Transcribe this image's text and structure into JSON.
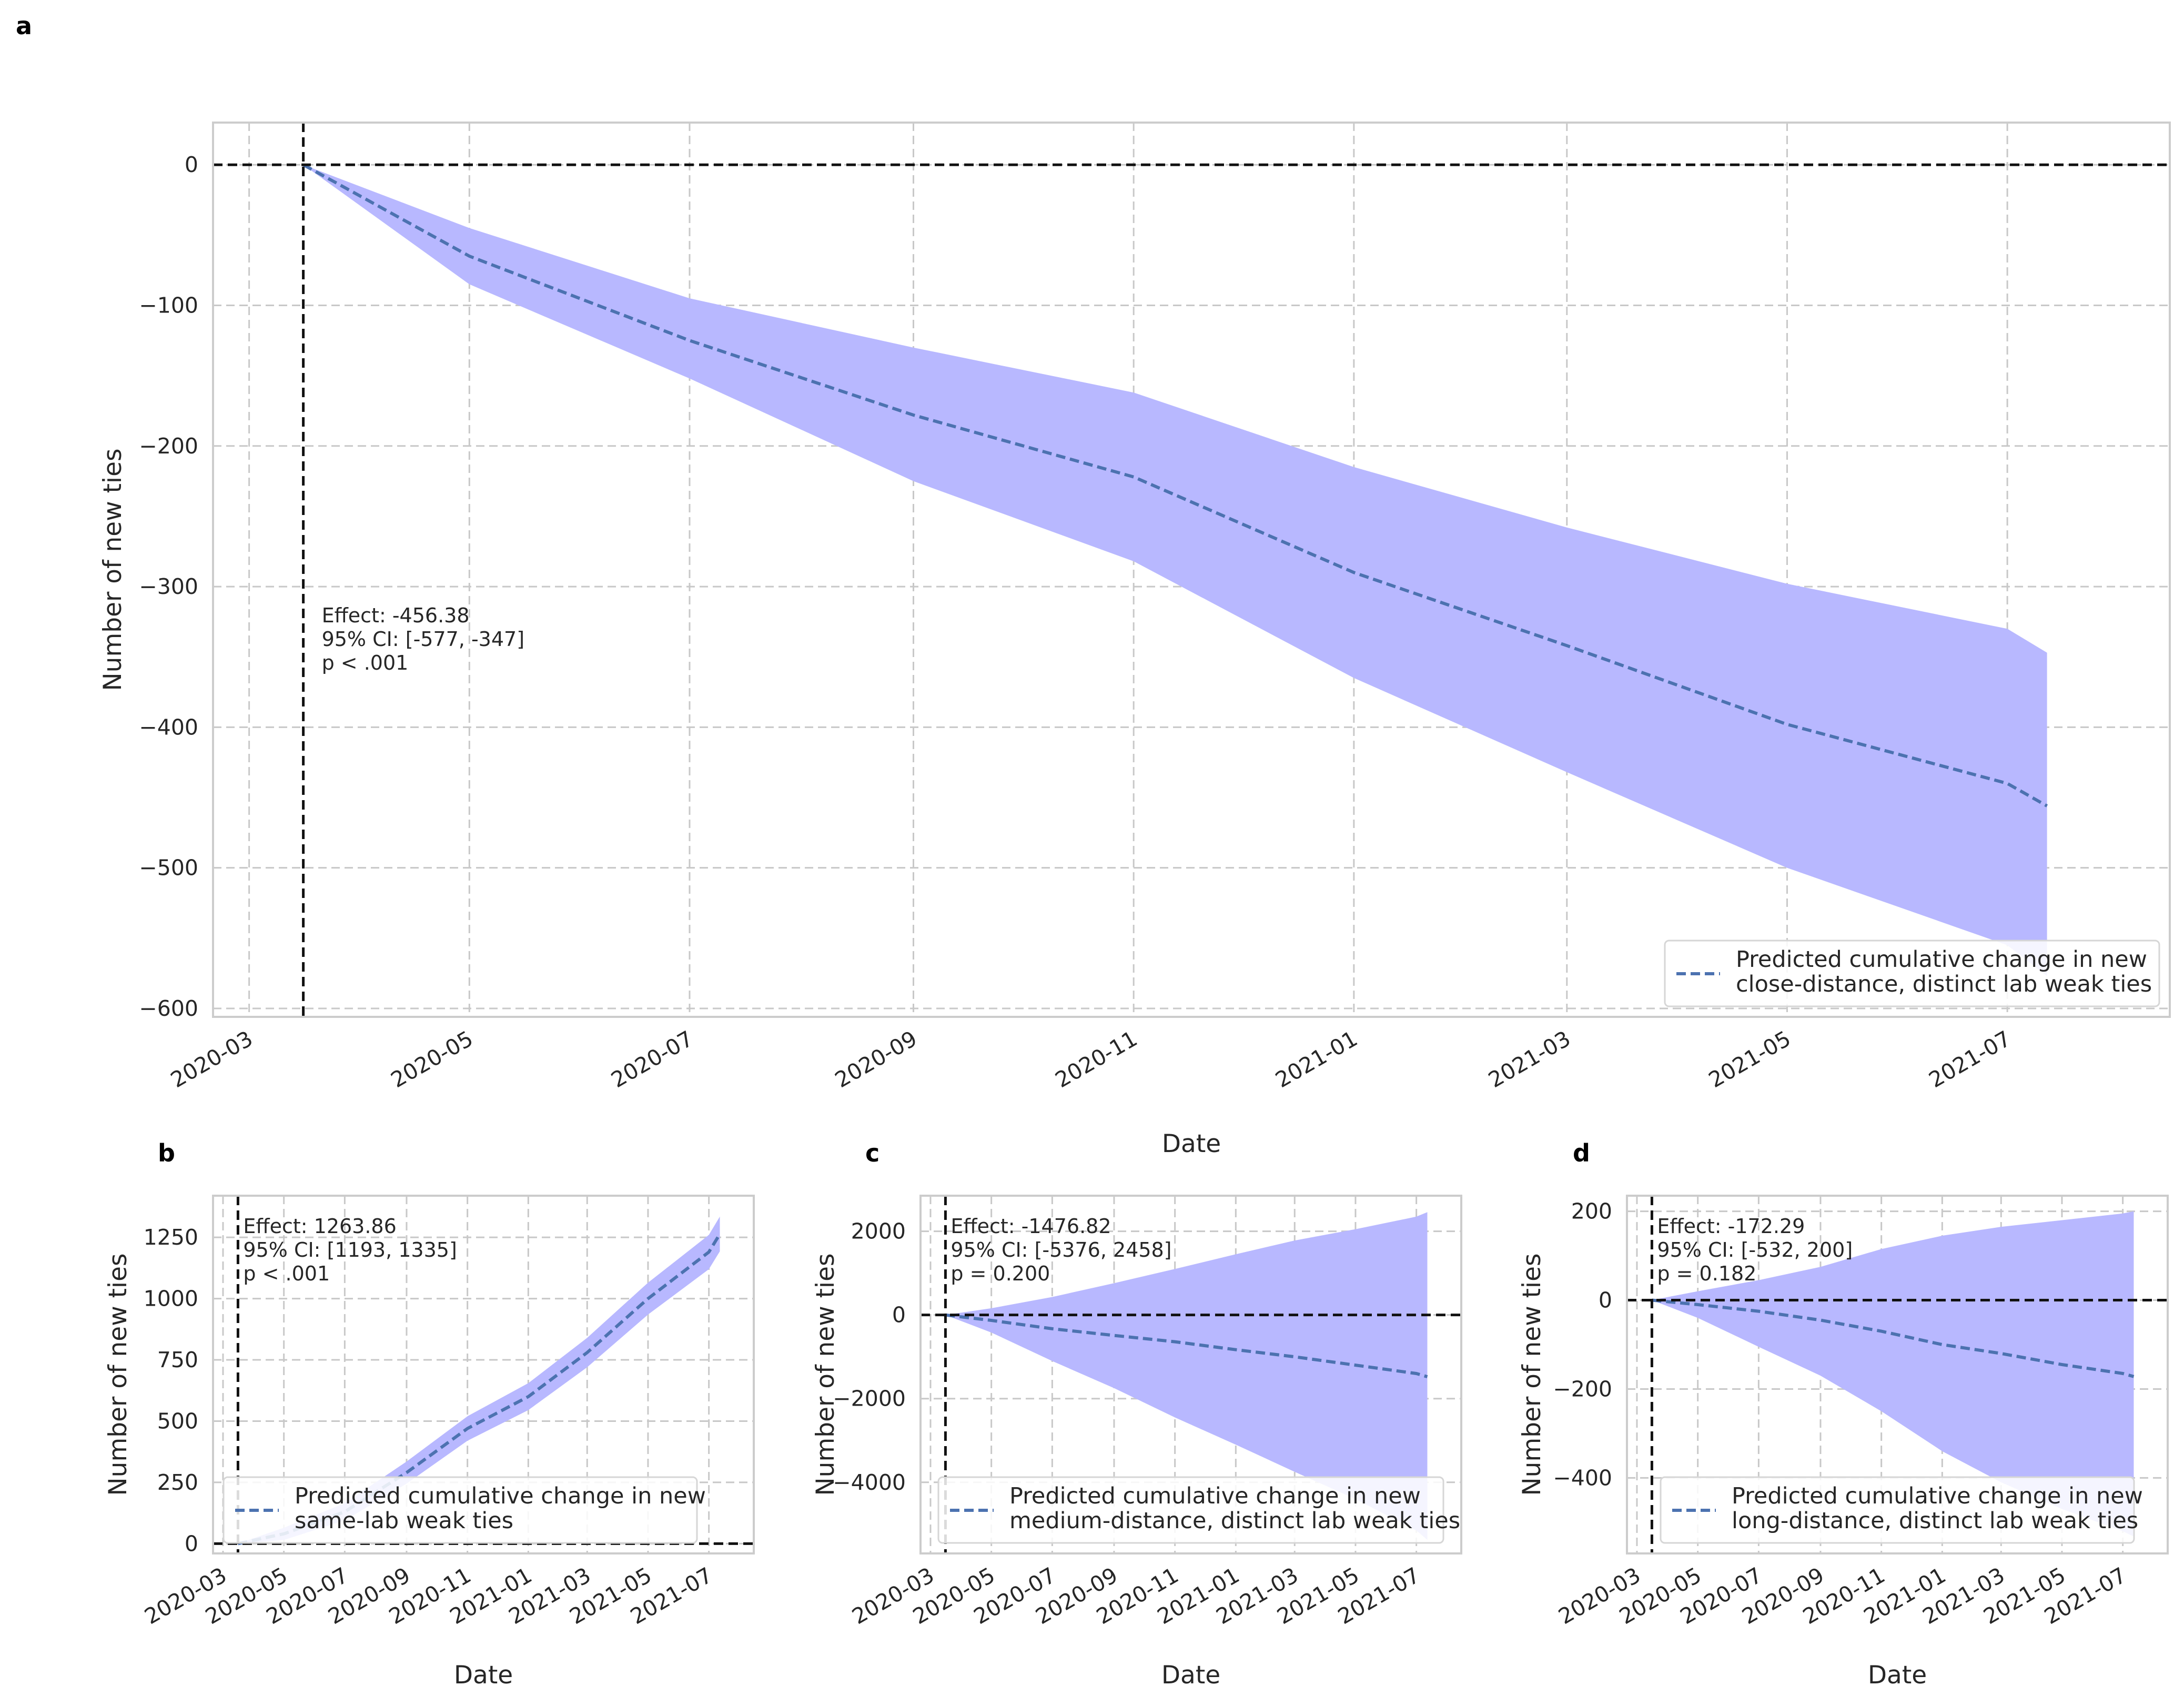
{
  "figure": {
    "panel_letters": [
      "a",
      "b",
      "c",
      "d"
    ]
  },
  "chart_data": [
    {
      "panel": "a",
      "type": "line",
      "xlabel": "Date",
      "ylabel": "Number of new ties",
      "xlim": [
        "2020-02-20",
        "2021-08-15"
      ],
      "ylim": [
        -606,
        30
      ],
      "yticks": [
        0,
        -100,
        -200,
        -300,
        -400,
        -500,
        -600
      ],
      "yticklabels": [
        "0",
        "−100",
        "−200",
        "−300",
        "−400",
        "−500",
        "−600"
      ],
      "xticks": [
        "2020-03-01",
        "2020-05-01",
        "2020-07-01",
        "2020-09-01",
        "2020-11-01",
        "2021-01-01",
        "2021-03-01",
        "2021-05-01",
        "2021-07-01"
      ],
      "xticklabels": [
        "2020-03",
        "2020-05",
        "2020-07",
        "2020-09",
        "2020-11",
        "2021-01",
        "2021-03",
        "2021-05",
        "2021-07"
      ],
      "grid": true,
      "intervention_date": "2020-03-16",
      "hline": 0,
      "annotation": [
        "Effect: -456.38",
        "95% CI: [-577, -347]",
        "p < .001"
      ],
      "legend": {
        "location": "lower right",
        "lines": [
          "Predicted cumulative change in new",
          "close-distance, distinct lab weak ties"
        ]
      },
      "series": [
        {
          "x": [
            "2020-03-16",
            "2020-05-01",
            "2020-07-01",
            "2020-09-01",
            "2020-11-01",
            "2021-01-01",
            "2021-03-01",
            "2021-05-01",
            "2021-07-01",
            "2021-07-12"
          ],
          "values": [
            0,
            -65,
            -125,
            -178,
            -222,
            -290,
            -342,
            -398,
            -440,
            -456
          ],
          "lower": [
            0,
            -85,
            -152,
            -225,
            -282,
            -365,
            -432,
            -500,
            -555,
            -577
          ],
          "upper": [
            0,
            -45,
            -95,
            -130,
            -162,
            -215,
            -258,
            -298,
            -330,
            -347
          ]
        }
      ]
    },
    {
      "panel": "b",
      "type": "line",
      "xlabel": "Date",
      "ylabel": "Number of new ties",
      "xlim": [
        "2020-02-20",
        "2021-08-15"
      ],
      "ylim": [
        -40,
        1420
      ],
      "yticks": [
        0,
        250,
        500,
        750,
        1000,
        1250
      ],
      "yticklabels": [
        "0",
        "250",
        "500",
        "750",
        "1000",
        "1250"
      ],
      "xticks": [
        "2020-03-01",
        "2020-05-01",
        "2020-07-01",
        "2020-09-01",
        "2020-11-01",
        "2021-01-01",
        "2021-03-01",
        "2021-05-01",
        "2021-07-01"
      ],
      "xticklabels": [
        "2020-03",
        "2020-05",
        "2020-07",
        "2020-09",
        "2020-11",
        "2021-01",
        "2021-03",
        "2021-05",
        "2021-07"
      ],
      "grid": true,
      "intervention_date": "2020-03-16",
      "hline": 0,
      "annotation": [
        "Effect: 1263.86",
        "95% CI: [1193, 1335]",
        "p < .001"
      ],
      "legend": {
        "location": "lower left",
        "lines": [
          "Predicted cumulative change in new",
          "same-lab weak ties"
        ]
      },
      "series": [
        {
          "x": [
            "2020-03-16",
            "2020-05-01",
            "2020-07-01",
            "2020-09-01",
            "2020-11-01",
            "2021-01-01",
            "2021-03-01",
            "2021-05-01",
            "2021-07-01",
            "2021-07-12"
          ],
          "values": [
            0,
            40,
            130,
            290,
            470,
            600,
            780,
            1000,
            1190,
            1264
          ],
          "lower": [
            0,
            15,
            95,
            245,
            420,
            545,
            720,
            935,
            1120,
            1193
          ],
          "upper": [
            0,
            65,
            165,
            335,
            520,
            655,
            840,
            1065,
            1260,
            1335
          ]
        }
      ]
    },
    {
      "panel": "c",
      "type": "line",
      "xlabel": "Date",
      "ylabel": "Number of new ties",
      "xlim": [
        "2020-02-20",
        "2021-08-15"
      ],
      "ylim": [
        -5700,
        2850
      ],
      "yticks": [
        2000,
        0,
        -2000,
        -4000
      ],
      "yticklabels": [
        "2000",
        "0",
        "−2000",
        "−4000"
      ],
      "xticks": [
        "2020-03-01",
        "2020-05-01",
        "2020-07-01",
        "2020-09-01",
        "2020-11-01",
        "2021-01-01",
        "2021-03-01",
        "2021-05-01",
        "2021-07-01"
      ],
      "xticklabels": [
        "2020-03",
        "2020-05",
        "2020-07",
        "2020-09",
        "2020-11",
        "2021-01",
        "2021-03",
        "2021-05",
        "2021-07"
      ],
      "grid": true,
      "intervention_date": "2020-03-16",
      "hline": 0,
      "annotation": [
        "Effect: -1476.82",
        "95% CI: [-5376, 2458]",
        "p = 0.200"
      ],
      "legend": {
        "location": "lower center",
        "lines": [
          "Predicted cumulative change in new",
          "medium-distance, distinct lab weak ties"
        ]
      },
      "series": [
        {
          "x": [
            "2020-03-16",
            "2020-05-01",
            "2020-07-01",
            "2020-09-01",
            "2020-11-01",
            "2021-01-01",
            "2021-03-01",
            "2021-05-01",
            "2021-07-01",
            "2021-07-12"
          ],
          "values": [
            0,
            -130,
            -330,
            -490,
            -640,
            -830,
            -1000,
            -1200,
            -1400,
            -1477
          ],
          "lower": [
            0,
            -420,
            -1100,
            -1750,
            -2450,
            -3100,
            -3750,
            -4400,
            -5150,
            -5376
          ],
          "upper": [
            0,
            160,
            430,
            760,
            1100,
            1450,
            1780,
            2050,
            2350,
            2458
          ]
        }
      ]
    },
    {
      "panel": "d",
      "type": "line",
      "xlabel": "Date",
      "ylabel": "Number of new ties",
      "xlim": [
        "2020-02-20",
        "2021-08-15"
      ],
      "ylim": [
        -570,
        235
      ],
      "yticks": [
        200,
        0,
        -200,
        -400
      ],
      "yticklabels": [
        "200",
        "0",
        "−200",
        "−400"
      ],
      "xticks": [
        "2020-03-01",
        "2020-05-01",
        "2020-07-01",
        "2020-09-01",
        "2020-11-01",
        "2021-01-01",
        "2021-03-01",
        "2021-05-01",
        "2021-07-01"
      ],
      "xticklabels": [
        "2020-03",
        "2020-05",
        "2020-07",
        "2020-09",
        "2020-11",
        "2021-01",
        "2021-03",
        "2021-05",
        "2021-07"
      ],
      "grid": true,
      "intervention_date": "2020-03-16",
      "hline": 0,
      "annotation": [
        "Effect: -172.29",
        "95% CI: [-532, 200]",
        "p = 0.182"
      ],
      "legend": {
        "location": "lower center",
        "lines": [
          "Predicted cumulative change in new",
          "long-distance, distinct lab weak ties"
        ]
      },
      "series": [
        {
          "x": [
            "2020-03-16",
            "2020-05-01",
            "2020-07-01",
            "2020-09-01",
            "2020-11-01",
            "2021-01-01",
            "2021-03-01",
            "2021-05-01",
            "2021-07-01",
            "2021-07-12"
          ],
          "values": [
            0,
            -10,
            -25,
            -45,
            -70,
            -100,
            -120,
            -145,
            -165,
            -172
          ],
          "lower": [
            0,
            -40,
            -105,
            -170,
            -250,
            -340,
            -410,
            -470,
            -520,
            -532
          ],
          "upper": [
            0,
            20,
            45,
            75,
            115,
            145,
            165,
            180,
            195,
            200
          ]
        }
      ]
    }
  ]
}
